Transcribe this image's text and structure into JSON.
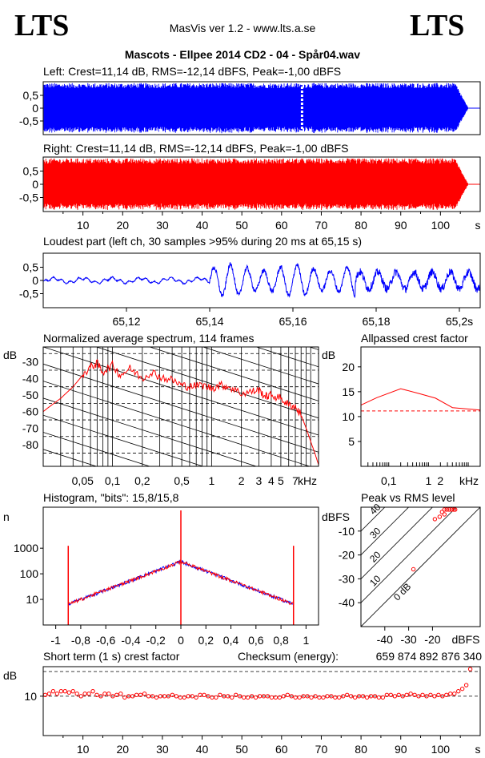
{
  "header": {
    "logo_left": "LTS",
    "logo_right": "LTS",
    "app": "MasVis ver 1.2 - www.lts.a.se",
    "file_title": "Mascots - Ellpee 2014 CD2 - 04 - Spår04.wav"
  },
  "colors": {
    "left": "#0000ff",
    "right": "#ff0000",
    "grid": "#000000"
  },
  "chart_data": [
    {
      "id": "left-waveform",
      "type": "area",
      "title": "Left: Crest=11,14 dB, RMS=-12,14 dBFS, Peak=-1,00 dBFS",
      "yticks": [
        "0,5",
        "0",
        "-0,5"
      ],
      "ylim": [
        -1,
        1
      ],
      "xlim": [
        0,
        110
      ],
      "duration_s": 107,
      "marker_s": 65.15
    },
    {
      "id": "right-waveform",
      "type": "area",
      "title": "Right: Crest=11,14 dB, RMS=-12,14 dBFS, Peak=-1,00 dBFS",
      "yticks": [
        "0,5",
        "0",
        "-0,5"
      ],
      "ylim": [
        -1,
        1
      ],
      "xlim": [
        0,
        110
      ],
      "duration_s": 107,
      "xticks": [
        "10",
        "20",
        "30",
        "40",
        "50",
        "60",
        "70",
        "80",
        "90",
        "100"
      ],
      "xunit": "s"
    },
    {
      "id": "loudest-part",
      "type": "line",
      "title": "Loudest part (left  ch, 30 samples >95% during 20 ms at 65,15 s)",
      "yticks": [
        "0,5",
        "0",
        "-0,5"
      ],
      "ylim": [
        -1,
        1
      ],
      "xlim": [
        65.1,
        65.205
      ],
      "xticks": [
        "65,12",
        "65,14",
        "65,16",
        "65,18",
        "65,2s"
      ]
    },
    {
      "id": "avg-spectrum",
      "type": "line",
      "title": "Normalized average spectrum, 114 frames",
      "ylabel": "dB",
      "yticks": [
        "-30",
        "-40",
        "-50",
        "-60",
        "-70",
        "-80"
      ],
      "ylim": [
        -93,
        -21
      ],
      "xticks": [
        "0,05",
        "0,1",
        "0,2",
        "0,5",
        "1",
        "2",
        "3",
        "4",
        "5",
        "7"
      ],
      "xunit": "kHz",
      "points": [
        [
          0.02,
          -60
        ],
        [
          0.022,
          -58
        ],
        [
          0.03,
          -52
        ],
        [
          0.04,
          -45
        ],
        [
          0.05,
          -38
        ],
        [
          0.06,
          -33
        ],
        [
          0.07,
          -31
        ],
        [
          0.08,
          -36
        ],
        [
          0.1,
          -32
        ],
        [
          0.12,
          -38
        ],
        [
          0.15,
          -34
        ],
        [
          0.2,
          -40
        ],
        [
          0.25,
          -36
        ],
        [
          0.3,
          -39
        ],
        [
          0.4,
          -41
        ],
        [
          0.5,
          -44
        ],
        [
          0.6,
          -45
        ],
        [
          0.8,
          -44
        ],
        [
          1,
          -46
        ],
        [
          1.2,
          -44
        ],
        [
          1.5,
          -45
        ],
        [
          2,
          -49
        ],
        [
          2.5,
          -48
        ],
        [
          3,
          -47
        ],
        [
          3.5,
          -51
        ],
        [
          4,
          -50
        ],
        [
          5,
          -52
        ],
        [
          6,
          -56
        ],
        [
          7,
          -57
        ],
        [
          8,
          -62
        ],
        [
          9,
          -70
        ],
        [
          10,
          -78
        ],
        [
          11,
          -85
        ],
        [
          12,
          -92
        ]
      ]
    },
    {
      "id": "allpassed-crest",
      "type": "line",
      "title": "Allpassed crest factor",
      "ylabel": "dB",
      "yticks": [
        "20",
        "15",
        "10",
        "5"
      ],
      "ylim": [
        0,
        24
      ],
      "xticks": [
        "0,1",
        "1",
        "2",
        "kHz"
      ],
      "series": [
        {
          "values": [
            [
              0.02,
              12.3
            ],
            [
              0.05,
              13.8
            ],
            [
              0.2,
              15.6
            ],
            [
              0.6,
              14.6
            ],
            [
              1.5,
              13.7
            ],
            [
              4,
              11.8
            ],
            [
              20,
              11.3
            ]
          ]
        }
      ],
      "reference": 11.14
    },
    {
      "id": "histogram",
      "type": "line",
      "title": "Histogram, \"bits\": 15,8/15,8",
      "ylabel": "n",
      "yticks": [
        "1000",
        "100",
        "10"
      ],
      "ylim": [
        1,
        40000
      ],
      "xlim": [
        -1.1,
        1.1
      ],
      "xticks": [
        "-1",
        "-0,8",
        "-0,6",
        "-0,4",
        "-0,2",
        "0",
        "0,2",
        "0,4",
        "0,6",
        "0,8",
        "1"
      ],
      "peak_n": 300,
      "edge_level": 0.9
    },
    {
      "id": "peak-vs-rms",
      "type": "scatter",
      "title": "Peak vs RMS level",
      "ylabel": "dBFS",
      "xlabel": "dBFS",
      "yticks": [
        "-10",
        "-20",
        "-30",
        "-40"
      ],
      "xticks": [
        "-40",
        "-30",
        "-20"
      ],
      "xlim": [
        -50,
        0
      ],
      "ylim": [
        -50,
        0
      ],
      "diagonal_labels": [
        "40",
        "30",
        "20",
        "10",
        "0 dB"
      ],
      "points": [
        [
          -28,
          -26
        ],
        [
          -19,
          -5
        ],
        [
          -17,
          -4
        ],
        [
          -16,
          -2
        ],
        [
          -15,
          -1
        ],
        [
          -14,
          -1
        ],
        [
          -13,
          -1
        ],
        [
          -12,
          -1
        ],
        [
          -11,
          -1
        ],
        [
          -10.5,
          -1
        ],
        [
          -15,
          -3
        ]
      ]
    },
    {
      "id": "short-term-crest",
      "type": "scatter",
      "title": "Short term (1 s) crest factor",
      "checksum_label": "Checksum (energy):",
      "checksum_value": "659 874 892 876 340",
      "ylabel": "dB",
      "yticks": [
        "10"
      ],
      "ylim": [
        8.4,
        11.2
      ],
      "xlim": [
        0,
        110
      ],
      "xticks": [
        "10",
        "20",
        "30",
        "40",
        "50",
        "60",
        "70",
        "80",
        "90",
        "100"
      ],
      "xunit": "s",
      "values": [
        10.05,
        10.1,
        10.2,
        10.1,
        10.2,
        10.2,
        10.15,
        10.2,
        10.1,
        10.0,
        10.1,
        10.1,
        10.2,
        10.05,
        10.0,
        10.1,
        10.1,
        10.0,
        10.05,
        10.1,
        9.95,
        10.0,
        10.0,
        10.05,
        10.05,
        10.1,
        10.0,
        10.0,
        9.95,
        10.0,
        10.0,
        10.0,
        10.05,
        10.0,
        9.95,
        9.95,
        10.0,
        10.0,
        9.95,
        10.05,
        10.05,
        10.0,
        9.95,
        9.95,
        10.05,
        10.0,
        10.0,
        9.95,
        10.05,
        10.0,
        9.95,
        9.95,
        10.0,
        9.95,
        10.0,
        10.0,
        10.0,
        9.95,
        9.95,
        9.95,
        10.0,
        10.05,
        10.0,
        9.95,
        9.95,
        10.0,
        10.0,
        9.95,
        10.0,
        9.95,
        9.95,
        10.0,
        10.0,
        9.95,
        9.95,
        10.0,
        10.05,
        10.0,
        9.95,
        10.0,
        10.0,
        9.95,
        10.0,
        10.0,
        9.95,
        9.95,
        10.05,
        10.05,
        10.0,
        10.05,
        10.0,
        10.05,
        10.1,
        10.05,
        10.0,
        10.05,
        10.0,
        10.05,
        10.0,
        10.05,
        10.0,
        10.05,
        10.1,
        10.1,
        10.2,
        10.3,
        10.45,
        11.1
      ]
    }
  ]
}
